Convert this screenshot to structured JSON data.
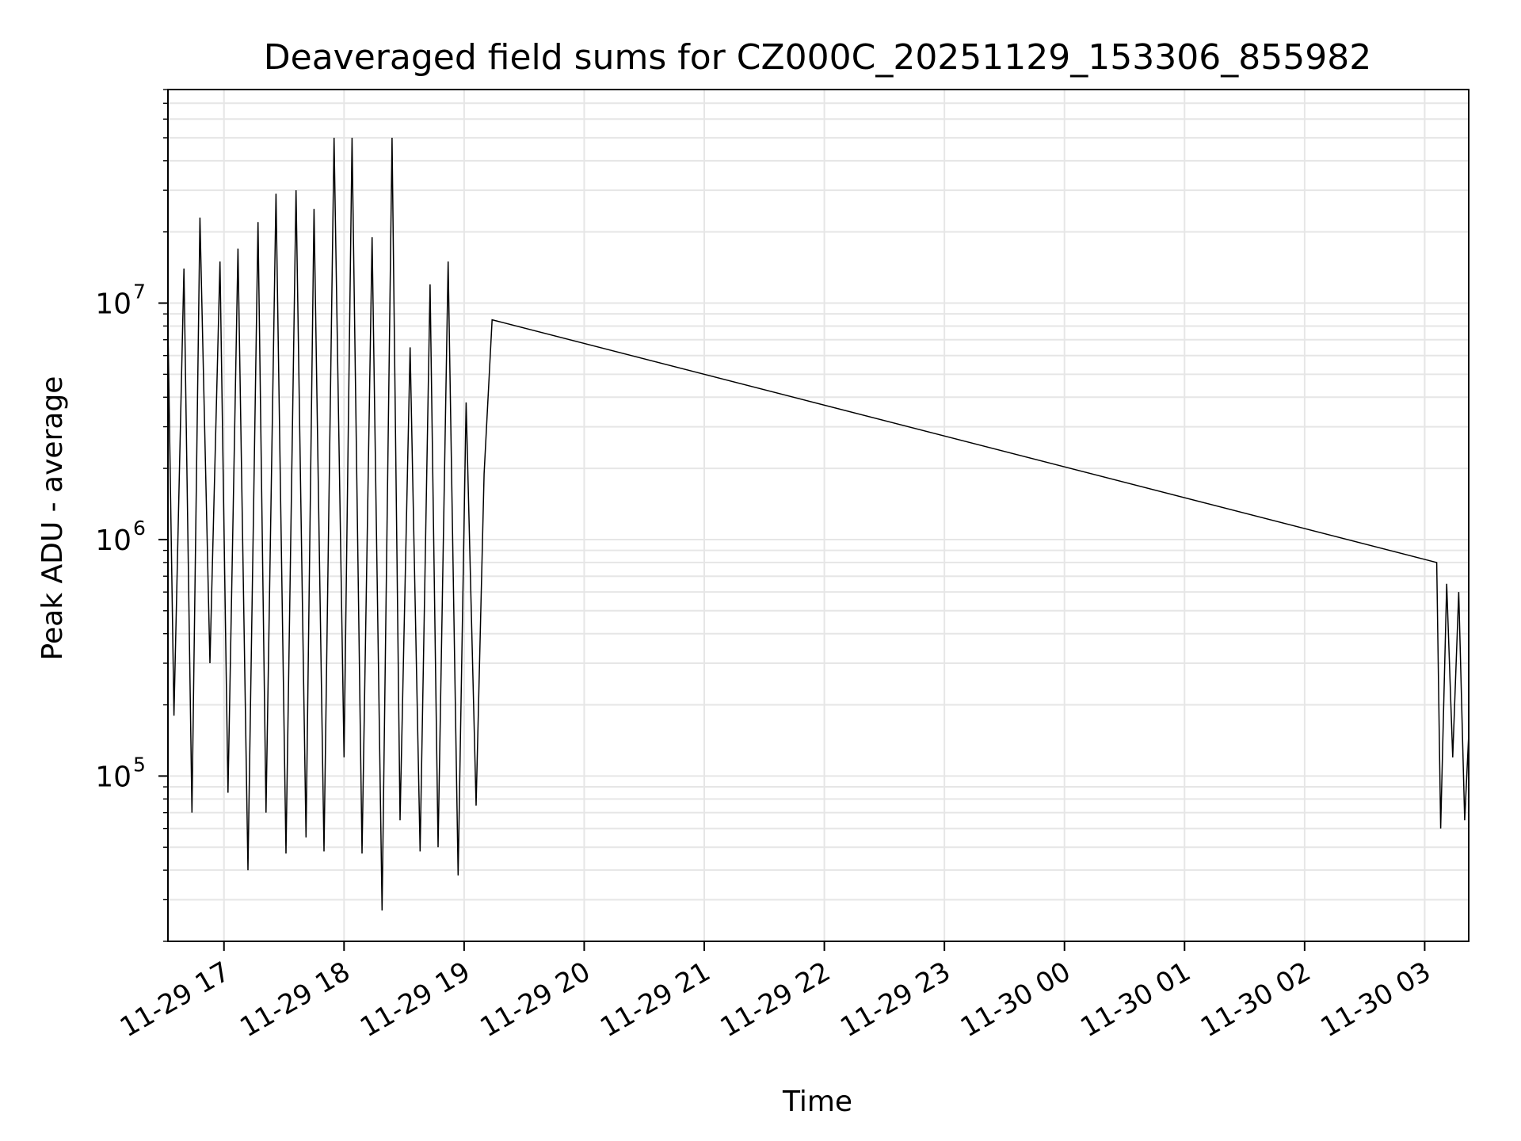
{
  "chart_data": {
    "type": "line",
    "title": "Deaveraged field sums for CZ000C_20251129_153306_855982",
    "xlabel": "Time",
    "ylabel": "Peak ADU - average",
    "yscale": "log",
    "ylim": [
      20000,
      80000000
    ],
    "xlim": [
      "2025-11-29 16:32",
      "2025-11-30 03:22"
    ],
    "grid": true,
    "line_color": "#000000",
    "grid_color": "#e6e6e6",
    "x_tick_labels": [
      "11-29 17",
      "11-29 18",
      "11-29 19",
      "11-29 20",
      "11-29 21",
      "11-29 22",
      "11-29 23",
      "11-30 00",
      "11-30 01",
      "11-30 02",
      "11-30 03"
    ],
    "x_ticks": [
      "2025-11-29 17:00",
      "2025-11-29 18:00",
      "2025-11-29 19:00",
      "2025-11-29 20:00",
      "2025-11-29 21:00",
      "2025-11-29 22:00",
      "2025-11-29 23:00",
      "2025-11-30 00:00",
      "2025-11-30 01:00",
      "2025-11-30 02:00",
      "2025-11-30 03:00"
    ],
    "y_ticks": [
      {
        "base": "10",
        "exp": "5",
        "value": 100000
      },
      {
        "base": "10",
        "exp": "6",
        "value": 1000000
      },
      {
        "base": "10",
        "exp": "7",
        "value": 10000000
      }
    ],
    "series": [
      {
        "x": [
          "2025-11-29 16:32",
          "2025-11-29 16:35",
          "2025-11-29 16:40",
          "2025-11-29 16:44",
          "2025-11-29 16:48",
          "2025-11-29 16:53",
          "2025-11-29 16:58",
          "2025-11-29 17:02",
          "2025-11-29 17:07",
          "2025-11-29 17:12",
          "2025-11-29 17:17",
          "2025-11-29 17:21",
          "2025-11-29 17:26",
          "2025-11-29 17:31",
          "2025-11-29 17:36",
          "2025-11-29 17:41",
          "2025-11-29 17:45",
          "2025-11-29 17:50",
          "2025-11-29 17:55",
          "2025-11-29 18:00",
          "2025-11-29 18:04",
          "2025-11-29 18:09",
          "2025-11-29 18:14",
          "2025-11-29 18:19",
          "2025-11-29 18:24",
          "2025-11-29 18:28",
          "2025-11-29 18:33",
          "2025-11-29 18:38",
          "2025-11-29 18:43",
          "2025-11-29 18:47",
          "2025-11-29 18:52",
          "2025-11-29 18:57",
          "2025-11-29 19:01",
          "2025-11-29 19:06",
          "2025-11-29 19:10",
          "2025-11-29 19:14",
          "2025-11-30 03:06",
          "2025-11-30 03:08",
          "2025-11-30 03:11",
          "2025-11-30 03:14",
          "2025-11-30 03:17",
          "2025-11-30 03:20",
          "2025-11-30 03:22"
        ],
        "values": [
          8000000,
          180000,
          14000000,
          70000,
          23000000,
          300000,
          15000000,
          85000,
          17000000,
          40000,
          22000000,
          70000,
          29000000,
          47000,
          30000000,
          55000,
          25000000,
          48000,
          50000000,
          120000,
          50000000,
          47000,
          19000000,
          27000,
          50000000,
          65000,
          6500000,
          48000,
          12000000,
          50000,
          15000000,
          38000,
          3800000,
          75000,
          1900000,
          8500000,
          800000,
          60000,
          650000,
          120000,
          600000,
          65000,
          150000
        ]
      }
    ]
  }
}
